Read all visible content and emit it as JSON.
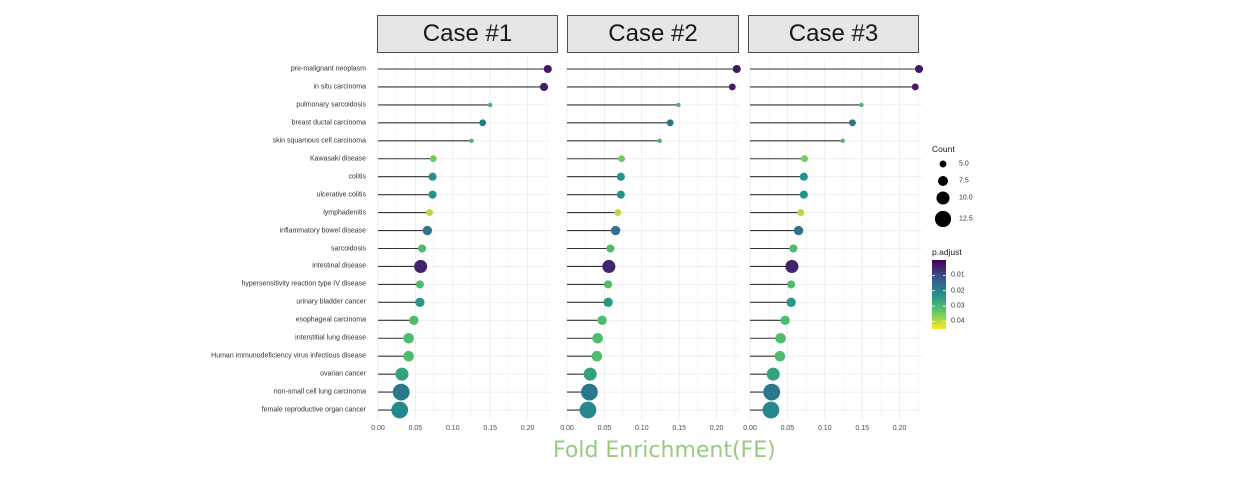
{
  "chart_data": {
    "type": "lollipop",
    "x_title": "Fold Enrichment(FE)",
    "xlim": [
      0,
      0.23
    ],
    "x_ticks": [
      0.0,
      0.05,
      0.1,
      0.15,
      0.2
    ],
    "x_tick_labels": [
      "0.00",
      "0.05",
      "0.10",
      "0.15",
      "0.20"
    ],
    "categories": [
      "pre-malignant neoplasm",
      "in situ carcinoma",
      "pulmonary sarcoidosis",
      "breast ductal carcinoma",
      "skin squamous cell carcinoma",
      "Kawasaki disease",
      "colitis",
      "ulcerative colitis",
      "lymphadenitis",
      "inflammatory bowel disease",
      "sarcoidosis",
      "intestinal disease",
      "hypersensitivity reaction type IV disease",
      "urinary bladder cancer",
      "esophageal carcinoma",
      "interstitial lung disease",
      "Human immunodeficiency virus infectious disease",
      "ovarian cancer",
      "non-small cell lung carcinoma",
      "female reproductive organ cancer"
    ],
    "panels": [
      {
        "title": "Case #1",
        "fold_enrichment": [
          0.227,
          0.222,
          0.15,
          0.14,
          0.125,
          0.074,
          0.073,
          0.073,
          0.069,
          0.066,
          0.059,
          0.057,
          0.056,
          0.056,
          0.048,
          0.041,
          0.041,
          0.032,
          0.031,
          0.029
        ],
        "count": [
          6,
          6,
          3,
          5,
          3,
          5,
          6,
          6,
          5,
          7,
          6,
          10,
          6,
          7,
          7,
          8,
          8,
          10,
          13,
          13
        ],
        "p_adjust": [
          0.003,
          0.004,
          0.03,
          0.018,
          0.03,
          0.035,
          0.023,
          0.023,
          0.04,
          0.017,
          0.031,
          0.005,
          0.031,
          0.024,
          0.031,
          0.031,
          0.031,
          0.026,
          0.018,
          0.021
        ]
      },
      {
        "title": "Case #2",
        "fold_enrichment": [
          0.227,
          0.221,
          0.149,
          0.138,
          0.124,
          0.073,
          0.072,
          0.072,
          0.068,
          0.065,
          0.058,
          0.056,
          0.055,
          0.055,
          0.047,
          0.041,
          0.04,
          0.031,
          0.03,
          0.028
        ],
        "count": [
          6,
          5,
          3,
          5,
          3,
          5,
          6,
          6,
          5,
          7,
          6,
          10,
          6,
          7,
          7,
          8,
          8,
          10,
          13,
          13
        ],
        "p_adjust": [
          0.003,
          0.004,
          0.03,
          0.018,
          0.03,
          0.035,
          0.023,
          0.023,
          0.04,
          0.017,
          0.031,
          0.005,
          0.031,
          0.024,
          0.031,
          0.031,
          0.031,
          0.026,
          0.018,
          0.021
        ]
      },
      {
        "title": "Case #3",
        "fold_enrichment": [
          0.226,
          0.221,
          0.149,
          0.137,
          0.124,
          0.073,
          0.072,
          0.072,
          0.068,
          0.065,
          0.058,
          0.056,
          0.055,
          0.055,
          0.047,
          0.041,
          0.04,
          0.031,
          0.029,
          0.028
        ],
        "count": [
          6,
          5,
          3,
          5,
          3,
          5,
          6,
          6,
          5,
          7,
          6,
          10,
          6,
          7,
          7,
          8,
          8,
          10,
          13,
          13
        ],
        "p_adjust": [
          0.003,
          0.004,
          0.03,
          0.018,
          0.03,
          0.035,
          0.023,
          0.023,
          0.04,
          0.017,
          0.031,
          0.005,
          0.031,
          0.024,
          0.031,
          0.031,
          0.031,
          0.026,
          0.018,
          0.021
        ]
      }
    ],
    "legend_count": {
      "title": "Count",
      "values": [
        5.0,
        7.5,
        10.0,
        12.5
      ],
      "labels": [
        "5.0",
        "7.5",
        "10.0",
        "12.5"
      ]
    },
    "legend_p_adjust": {
      "title": "p.adjust",
      "range": [
        0.0,
        0.045
      ],
      "ticks": [
        0.01,
        0.02,
        0.03,
        0.04
      ],
      "labels": [
        "0.01",
        "0.02",
        "0.03",
        "0.04"
      ],
      "colormap": "viridis"
    },
    "colors": {
      "viridis": [
        "#440154",
        "#3b528b",
        "#21918c",
        "#5ec962",
        "#fde725"
      ],
      "stem": "#333333",
      "grid": "#ebebeb",
      "x_title": "#9bc980"
    }
  }
}
